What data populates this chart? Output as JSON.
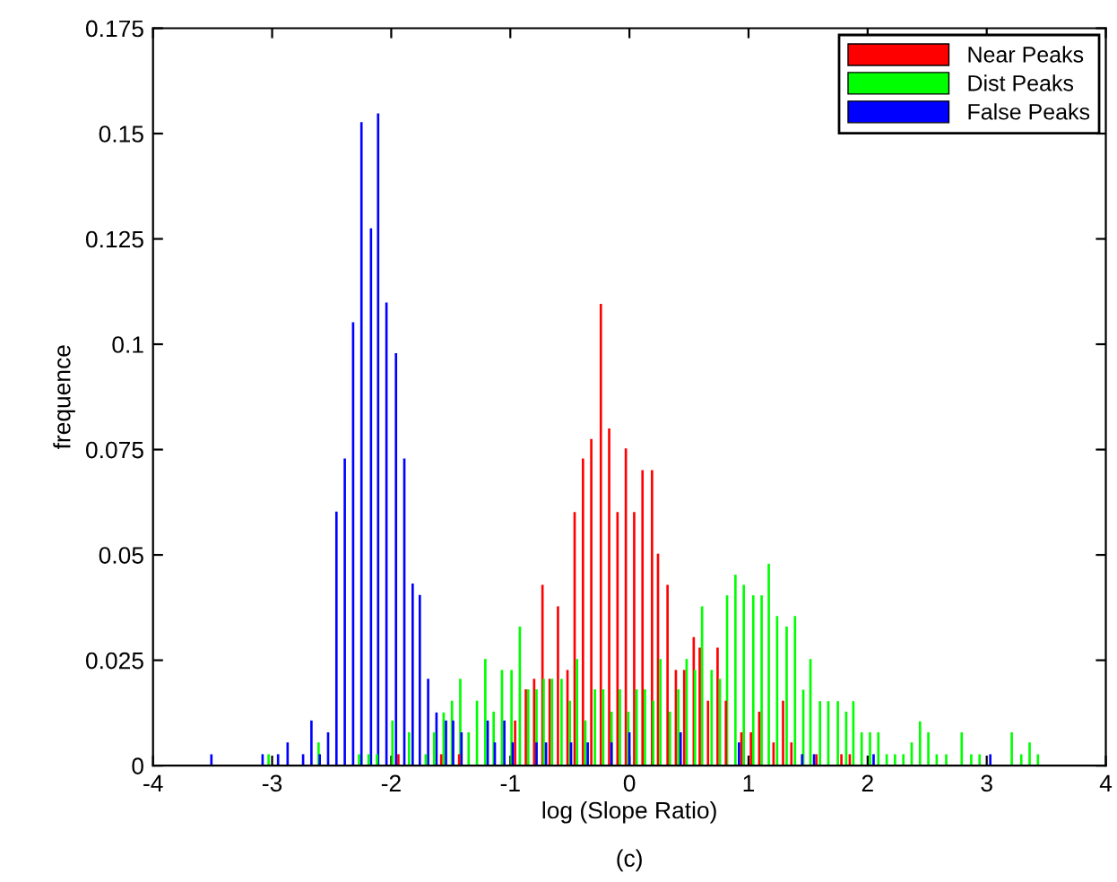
{
  "chart_data": {
    "type": "bar",
    "xlabel": "log (Slope Ratio)",
    "ylabel": "frequence",
    "annotations": [
      "(c)"
    ],
    "xlim": [
      -4,
      4
    ],
    "xticks": [
      -4,
      -3,
      -2,
      -1,
      0,
      1,
      2,
      3,
      4
    ],
    "ylim": [
      0,
      0.175
    ],
    "yticks": [
      0,
      0.025,
      0.05,
      0.075,
      0.1,
      0.125,
      0.15,
      0.175
    ],
    "legend": "top right",
    "grid": false,
    "series": [
      {
        "name": "Near Peaks",
        "color": "#ff0000",
        "x": [
          -1.94,
          -1.58,
          -1.43,
          -0.96,
          -0.87,
          -0.8,
          -0.73,
          -0.67,
          -0.6,
          -0.52,
          -0.46,
          -0.39,
          -0.32,
          -0.24,
          -0.17,
          -0.1,
          -0.03,
          0.04,
          0.11,
          0.19,
          0.24,
          0.32,
          0.39,
          0.46,
          0.54,
          0.59,
          0.66,
          0.74,
          0.81,
          0.94,
          1.02,
          1.09,
          1.21,
          1.29,
          1.36,
          1.57,
          1.78,
          1.85
        ],
        "values": [
          0.0027,
          0.0027,
          0.0027,
          0.0107,
          0.0181,
          0.0206,
          0.0429,
          0.0206,
          0.0378,
          0.0227,
          0.0602,
          0.0729,
          0.0775,
          0.1096,
          0.08,
          0.0602,
          0.0753,
          0.0602,
          0.0701,
          0.0701,
          0.0503,
          0.0429,
          0.0227,
          0.0227,
          0.0305,
          0.028,
          0.0154,
          0.028,
          0.0154,
          0.0079,
          0.0079,
          0.0128,
          0.0055,
          0.0154,
          0.0055,
          0.0027,
          0.0027,
          0.0027
        ]
      },
      {
        "name": "Dist Peaks",
        "color": "#00ff00",
        "x": [
          -3.03,
          -2.61,
          -2.27,
          -2.19,
          -2.12,
          -1.99,
          -1.85,
          -1.71,
          -1.64,
          -1.56,
          -1.49,
          -1.42,
          -1.35,
          -1.28,
          -1.21,
          -1.14,
          -1.07,
          -0.99,
          -0.92,
          -0.85,
          -0.78,
          -0.72,
          -0.65,
          -0.57,
          -0.5,
          -0.44,
          -0.37,
          -0.29,
          -0.22,
          -0.15,
          -0.08,
          -0.01,
          0.06,
          0.13,
          0.2,
          0.26,
          0.34,
          0.41,
          0.48,
          0.55,
          0.61,
          0.69,
          0.76,
          0.82,
          0.89,
          0.96,
          1.04,
          1.11,
          1.17,
          1.24,
          1.32,
          1.39,
          1.46,
          1.52,
          1.6,
          1.67,
          1.75,
          1.82,
          1.88,
          1.95,
          2.02,
          2.09,
          2.16,
          2.23,
          2.3,
          2.37,
          2.44,
          2.51,
          2.58,
          2.66,
          2.79,
          2.87,
          2.94,
          3.21,
          3.29,
          3.36,
          3.43
        ],
        "values": [
          0.0027,
          0.0055,
          0.0027,
          0.0027,
          0.0027,
          0.0107,
          0.0079,
          0.0027,
          0.0079,
          0.0126,
          0.0154,
          0.0206,
          0.0079,
          0.0154,
          0.0253,
          0.0128,
          0.0227,
          0.0227,
          0.033,
          0.0181,
          0.0181,
          0.0206,
          0.0206,
          0.0206,
          0.0154,
          0.0253,
          0.0107,
          0.0181,
          0.0181,
          0.0128,
          0.0181,
          0.0128,
          0.0181,
          0.0181,
          0.0154,
          0.0253,
          0.0128,
          0.0181,
          0.0253,
          0.0227,
          0.0378,
          0.0227,
          0.0206,
          0.0404,
          0.0453,
          0.0429,
          0.0404,
          0.0404,
          0.0479,
          0.0355,
          0.033,
          0.0355,
          0.018,
          0.0253,
          0.0153,
          0.0153,
          0.0153,
          0.0128,
          0.0153,
          0.0079,
          0.0079,
          0.0079,
          0.0027,
          0.0027,
          0.0027,
          0.0055,
          0.0105,
          0.0079,
          0.0027,
          0.0027,
          0.0079,
          0.0027,
          0.0027,
          0.0079,
          0.0027,
          0.0055,
          0.0027
        ]
      },
      {
        "name": "False Peaks",
        "color": "#0000ff",
        "x": [
          -3.51,
          -3.08,
          -2.95,
          -2.87,
          -2.74,
          -2.67,
          -2.6,
          -2.53,
          -2.46,
          -2.39,
          -2.32,
          -2.25,
          -2.17,
          -2.11,
          -2.04,
          -1.96,
          -1.89,
          -1.82,
          -1.76,
          -1.69,
          -1.62,
          -1.54,
          -1.48,
          -1.41,
          -1.19,
          -1.13,
          -1.05,
          -0.98,
          -0.78,
          -0.7,
          -0.49,
          -0.35,
          -0.15,
          0.0,
          0.43,
          0.92,
          1.45,
          1.55,
          2.05,
          3.03
        ],
        "values": [
          0.0027,
          0.0027,
          0.0027,
          0.0055,
          0.0027,
          0.0107,
          0.0027,
          0.0079,
          0.0603,
          0.0729,
          0.1052,
          0.1527,
          0.1275,
          0.1548,
          0.1099,
          0.0979,
          0.0729,
          0.0432,
          0.0405,
          0.0206,
          0.0126,
          0.0107,
          0.0107,
          0.0079,
          0.0107,
          0.0055,
          0.0107,
          0.0055,
          0.0055,
          0.0055,
          0.0055,
          0.0055,
          0.0055,
          0.0079,
          0.0079,
          0.0055,
          0.0027,
          0.0027,
          0.0027,
          0.0027
        ]
      }
    ]
  }
}
